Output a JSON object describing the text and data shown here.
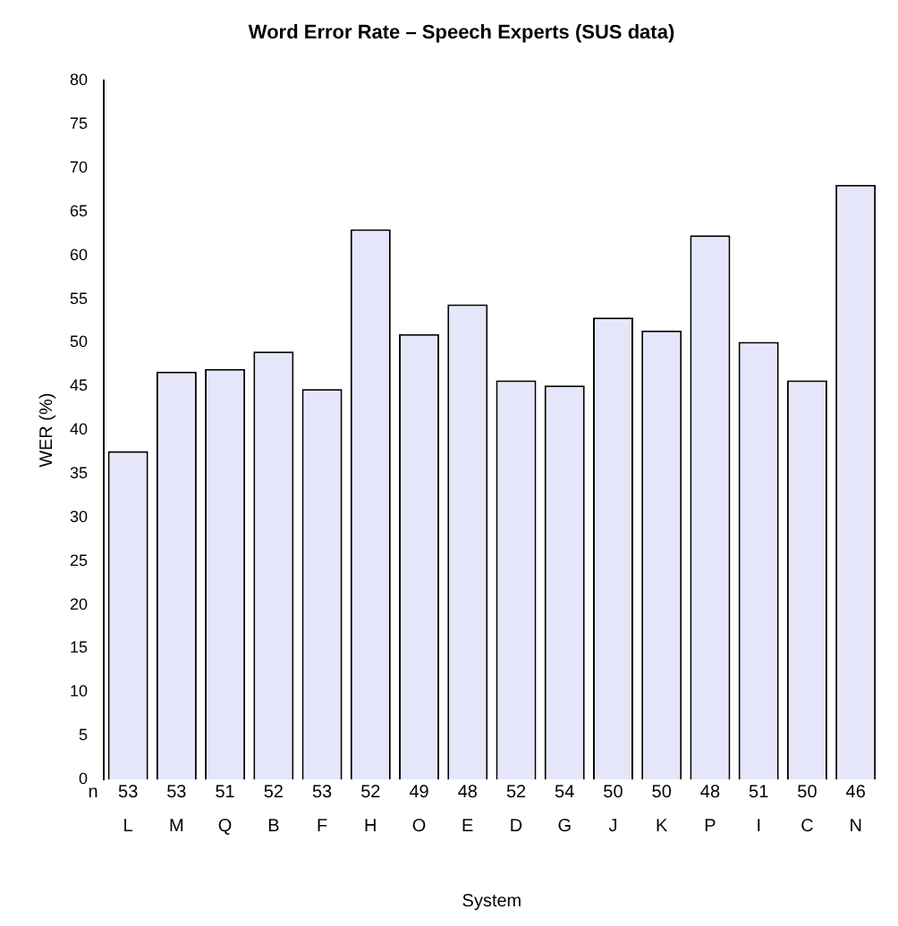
{
  "chart_data": {
    "type": "bar",
    "title": "Word Error Rate – Speech Experts (SUS data)",
    "xlabel": "System",
    "ylabel": "WER (%)",
    "categories": [
      "L",
      "M",
      "Q",
      "B",
      "F",
      "H",
      "O",
      "E",
      "D",
      "G",
      "J",
      "K",
      "P",
      "I",
      "C",
      "N"
    ],
    "values": [
      37.6,
      46.7,
      47.0,
      49.0,
      44.7,
      63.0,
      51.0,
      54.4,
      45.7,
      45.1,
      52.9,
      51.4,
      62.3,
      50.1,
      45.7,
      68.1
    ],
    "color": "#e6e6fa",
    "ylim": [
      0,
      80
    ],
    "yticks": [
      0,
      5,
      10,
      15,
      20,
      25,
      30,
      35,
      40,
      45,
      50,
      55,
      60,
      65,
      70,
      75,
      80
    ],
    "grid": false,
    "legend": false,
    "annotations": [
      "n",
      {
        "text": "53",
        "x": "L",
        "y": 0
      },
      {
        "text": "53",
        "x": "M",
        "y": 0
      },
      {
        "text": "51",
        "x": "Q",
        "y": 0
      },
      {
        "text": "52",
        "x": "B",
        "y": 0
      },
      {
        "text": "53",
        "x": "F",
        "y": 0
      },
      {
        "text": "52",
        "x": "H",
        "y": 0
      },
      {
        "text": "49",
        "x": "O",
        "y": 0
      },
      {
        "text": "48",
        "x": "E",
        "y": 0
      },
      {
        "text": "52",
        "x": "D",
        "y": 0
      },
      {
        "text": "54",
        "x": "G",
        "y": 0
      },
      {
        "text": "50",
        "x": "J",
        "y": 0
      },
      {
        "text": "50",
        "x": "K",
        "y": 0
      },
      {
        "text": "48",
        "x": "P",
        "y": 0
      },
      {
        "text": "51",
        "x": "I",
        "y": 0
      },
      {
        "text": "50",
        "x": "C",
        "y": 0
      },
      {
        "text": "46",
        "x": "N",
        "y": 0
      }
    ]
  }
}
